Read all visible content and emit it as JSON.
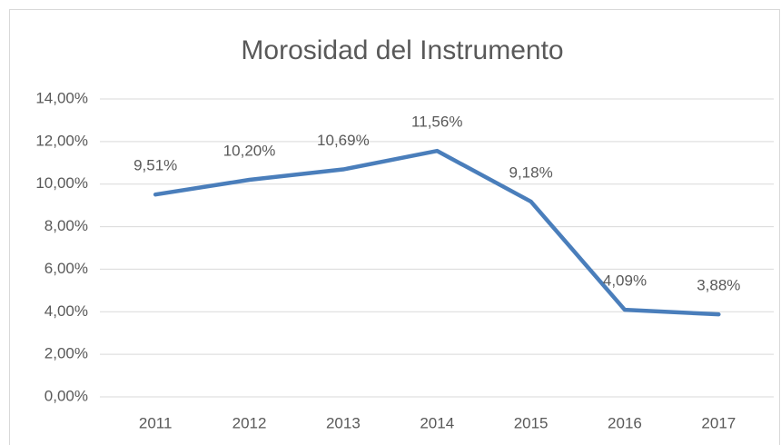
{
  "chart_data": {
    "type": "line",
    "title": "Morosidad del Instrumento",
    "categories": [
      "2011",
      "2012",
      "2013",
      "2014",
      "2015",
      "2016",
      "2017"
    ],
    "values": [
      9.51,
      10.2,
      10.69,
      11.56,
      9.18,
      4.09,
      3.88
    ],
    "value_labels": [
      "9,51%",
      "10,20%",
      "10,69%",
      "11,56%",
      "9,18%",
      "4,09%",
      "3,88%"
    ],
    "color": "#4a7ebb",
    "ylim": [
      0,
      14
    ],
    "yticks": [
      {
        "value": 0,
        "label": "0,00%"
      },
      {
        "value": 2,
        "label": "2,00%"
      },
      {
        "value": 4,
        "label": "4,00%"
      },
      {
        "value": 6,
        "label": "6,00%"
      },
      {
        "value": 8,
        "label": "8,00%"
      },
      {
        "value": 10,
        "label": "10,00%"
      },
      {
        "value": 12,
        "label": "12,00%"
      },
      {
        "value": 14,
        "label": "14,00%"
      }
    ],
    "grid": true
  }
}
